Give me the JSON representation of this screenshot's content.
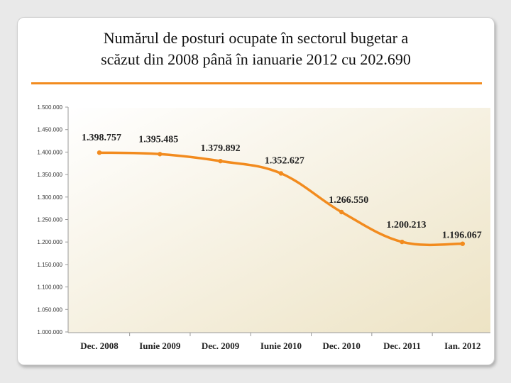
{
  "slide": {
    "title_lines": [
      "Numărul de posturi ocupate în sectorul bugetar a",
      "scăzut din 2008 până în ianuarie 2012 cu 202.690"
    ],
    "accent_color": "#f28b1e"
  },
  "chart_data": {
    "type": "line",
    "categories": [
      "Dec. 2008",
      "Iunie 2009",
      "Dec. 2009",
      "Iunie 2010",
      "Dec. 2010",
      "Dec. 2011",
      "Ian. 2012"
    ],
    "values": [
      1398757,
      1395485,
      1379892,
      1352627,
      1266550,
      1200213,
      1196067
    ],
    "data_labels": [
      "1.398.757",
      "1.395.485",
      "1.379.892",
      "1.352.627",
      "1.266.550",
      "1.200.213",
      "1.196.067"
    ],
    "y_ticks": [
      1000000,
      1050000,
      1100000,
      1150000,
      1200000,
      1250000,
      1300000,
      1350000,
      1400000,
      1450000,
      1500000
    ],
    "y_tick_labels": [
      "1.000.000",
      "1.050.000",
      "1.100.000",
      "1.150.000",
      "1.200.000",
      "1.250.000",
      "1.300.000",
      "1.350.000",
      "1.400.000",
      "1.450.000",
      "1.500.000"
    ],
    "ylim": [
      1000000,
      1500000
    ],
    "line_color": "#f28b1e",
    "plot_background": [
      "#ffffff",
      "#ede3c4"
    ],
    "grid": false,
    "title": "",
    "xlabel": "",
    "ylabel": ""
  }
}
